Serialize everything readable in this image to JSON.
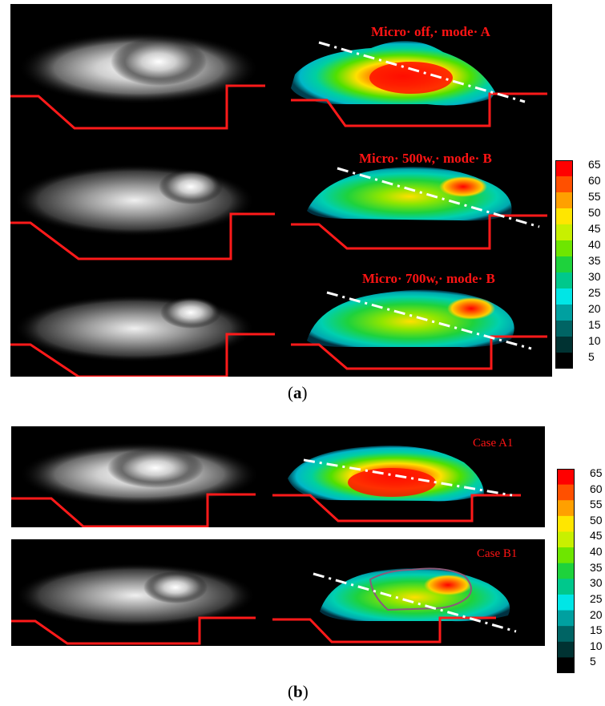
{
  "figure_a": {
    "labels": [
      "Micro· off,· mode· A",
      "Micro· 500w,· mode· B",
      "Micro· 700w,· mode· B"
    ],
    "caption_letter": "a"
  },
  "figure_b": {
    "labels": [
      "Case A1",
      "Case B1"
    ],
    "caption_letter": "b"
  },
  "colorbar": {
    "ticks": [
      "65",
      "60",
      "55",
      "50",
      "45",
      "40",
      "35",
      "30",
      "25",
      "20",
      "15",
      "10",
      "5"
    ],
    "colors": [
      "#ff0000",
      "#ff5000",
      "#ffa000",
      "#ffe600",
      "#c8f000",
      "#6ee600",
      "#1ed23c",
      "#00c88c",
      "#00e6e6",
      "#00a0a0",
      "#006464",
      "#003232",
      "#000000"
    ]
  }
}
